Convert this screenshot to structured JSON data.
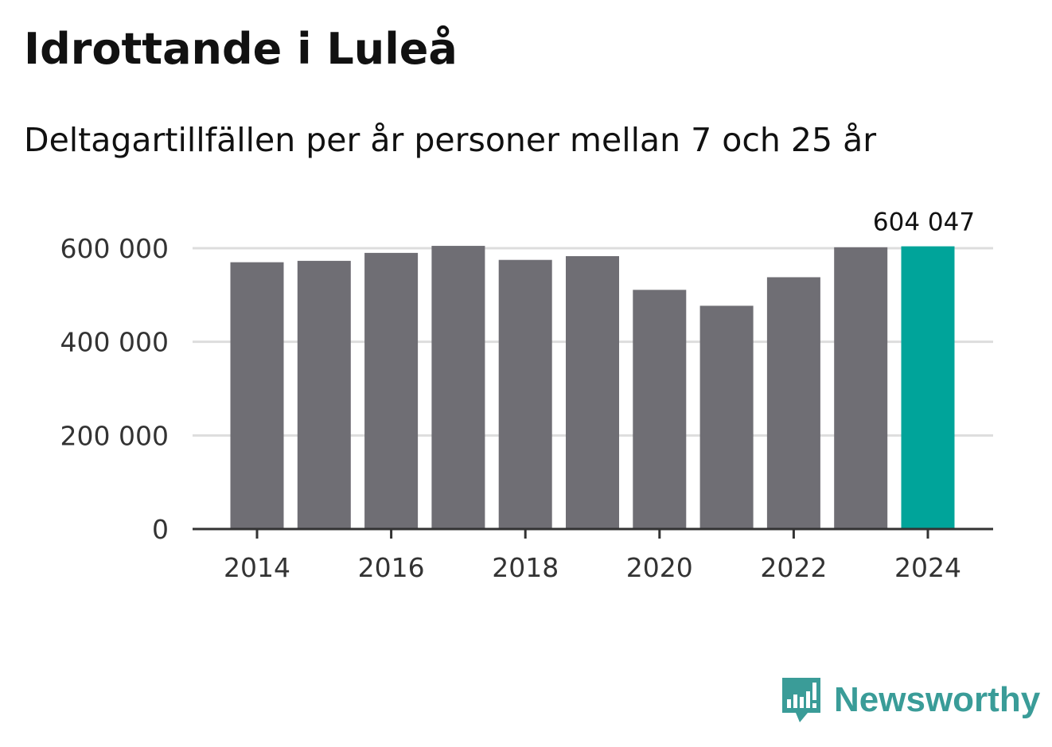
{
  "header": {
    "title": "Idrottande i Luleå",
    "subtitle": "Deltagartillfällen per år personer mellan 7 och 25 år"
  },
  "brand": {
    "name": "Newsworthy",
    "icon": "newsworthy-logo-icon"
  },
  "colors": {
    "bar": "#6f6e74",
    "highlight": "#00a49a",
    "grid": "#dddddd",
    "axis": "#333333",
    "brand": "#3a9c98"
  },
  "chart_data": {
    "type": "bar",
    "title": "Idrottande i Luleå",
    "subtitle": "Deltagartillfällen per år personer mellan 7 och 25 år",
    "xlabel": "",
    "ylabel": "",
    "categories": [
      "2014",
      "2015",
      "2016",
      "2017",
      "2018",
      "2019",
      "2020",
      "2021",
      "2022",
      "2023",
      "2024"
    ],
    "values": [
      570000,
      573000,
      590000,
      605000,
      575000,
      583000,
      511000,
      477000,
      538000,
      602000,
      604047
    ],
    "highlight_index": 10,
    "highlight_label": "604 047",
    "ylim": [
      0,
      600000
    ],
    "yticks": [
      0,
      200000,
      400000,
      600000
    ],
    "ytick_labels": [
      "0",
      "200 000",
      "400 000",
      "600 000"
    ],
    "xtick_labels": [
      "2014",
      "2016",
      "2018",
      "2020",
      "2022",
      "2024"
    ],
    "grid": true,
    "legend": "none"
  }
}
